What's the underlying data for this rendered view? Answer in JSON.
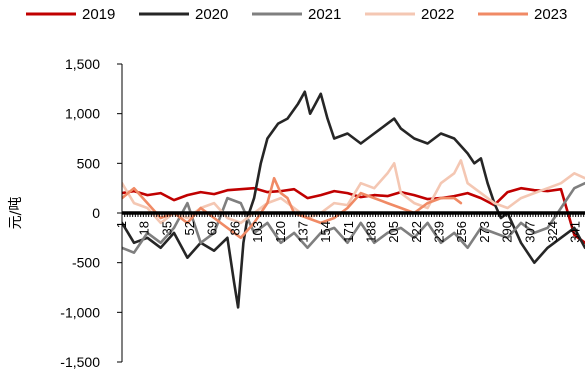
{
  "chart_data": {
    "type": "line",
    "ylabel": "元/吨",
    "xlabel": "",
    "ylim": [
      -1500,
      1500
    ],
    "yticks": [
      -1500,
      -1000,
      -500,
      0,
      500,
      1000,
      1500
    ],
    "ytick_labels": [
      "-1,500",
      "-1,000",
      "-500",
      "0",
      "500",
      "1,000",
      "1,500"
    ],
    "xticks": [
      1,
      18,
      35,
      52,
      69,
      86,
      103,
      120,
      137,
      154,
      171,
      188,
      205,
      222,
      239,
      256,
      273,
      290,
      307,
      324,
      341
    ],
    "xticks_visible": [
      "1",
      "18",
      "35",
      "52",
      "69",
      "86",
      "103",
      "120",
      "137",
      "154",
      "171",
      "188",
      "205",
      "222",
      "239",
      "256",
      "273",
      "290",
      "307",
      "324",
      "341"
    ],
    "xlim": [
      1,
      348
    ],
    "zero_line_color": "#000000",
    "grid": false,
    "legend_position": "top",
    "series": [
      {
        "name": "2019",
        "color": "#c00000",
        "x": [
          1,
          10,
          20,
          30,
          40,
          50,
          60,
          70,
          80,
          90,
          100,
          110,
          120,
          130,
          140,
          150,
          160,
          170,
          180,
          190,
          200,
          210,
          220,
          230,
          240,
          250,
          260,
          270,
          280,
          290,
          300,
          310,
          320,
          330,
          340,
          348
        ],
        "y": [
          200,
          220,
          180,
          200,
          130,
          180,
          210,
          190,
          230,
          240,
          250,
          210,
          220,
          240,
          150,
          180,
          220,
          200,
          160,
          180,
          170,
          210,
          180,
          140,
          150,
          170,
          200,
          150,
          80,
          210,
          250,
          230,
          220,
          240,
          -220,
          -300
        ]
      },
      {
        "name": "2020",
        "color": "#262626",
        "x": [
          1,
          10,
          20,
          30,
          40,
          50,
          60,
          70,
          80,
          85,
          88,
          92,
          95,
          100,
          105,
          110,
          118,
          125,
          133,
          138,
          142,
          146,
          150,
          155,
          160,
          170,
          180,
          190,
          200,
          205,
          210,
          220,
          230,
          240,
          250,
          260,
          265,
          270,
          275,
          280,
          285,
          290,
          300,
          310,
          320,
          330,
          340,
          348
        ],
        "y": [
          -100,
          -300,
          -250,
          -350,
          -200,
          -450,
          -300,
          -380,
          -250,
          -700,
          -950,
          -300,
          -50,
          150,
          500,
          750,
          900,
          950,
          1100,
          1220,
          1000,
          1100,
          1200,
          950,
          750,
          800,
          700,
          800,
          900,
          950,
          850,
          750,
          700,
          800,
          750,
          600,
          500,
          550,
          300,
          100,
          -50,
          0,
          -300,
          -500,
          -350,
          -250,
          -150,
          -350
        ]
      },
      {
        "name": "2021",
        "color": "#7f7f7f",
        "x": [
          1,
          10,
          20,
          30,
          40,
          50,
          60,
          70,
          80,
          90,
          100,
          110,
          120,
          130,
          140,
          150,
          160,
          170,
          180,
          190,
          200,
          210,
          220,
          230,
          240,
          250,
          260,
          270,
          280,
          290,
          300,
          310,
          320,
          330,
          340,
          348
        ],
        "y": [
          -350,
          -400,
          -200,
          -300,
          -150,
          100,
          -300,
          -200,
          150,
          100,
          -200,
          -100,
          -300,
          -200,
          -350,
          -200,
          -150,
          -300,
          -100,
          -300,
          -200,
          -150,
          -250,
          -100,
          -300,
          -200,
          -350,
          -150,
          -200,
          -250,
          -100,
          -200,
          -150,
          50,
          250,
          300
        ]
      },
      {
        "name": "2022",
        "color": "#f4c7b3",
        "x": [
          1,
          10,
          20,
          30,
          40,
          50,
          60,
          70,
          80,
          90,
          100,
          110,
          120,
          130,
          140,
          150,
          160,
          170,
          180,
          190,
          200,
          205,
          210,
          220,
          230,
          240,
          250,
          255,
          260,
          270,
          280,
          290,
          300,
          310,
          320,
          330,
          340,
          348
        ],
        "y": [
          300,
          100,
          50,
          -100,
          0,
          -50,
          50,
          100,
          -50,
          -100,
          0,
          100,
          150,
          50,
          -50,
          0,
          100,
          80,
          300,
          250,
          400,
          500,
          200,
          100,
          50,
          300,
          400,
          530,
          300,
          200,
          100,
          50,
          150,
          200,
          250,
          300,
          400,
          350
        ]
      },
      {
        "name": "2023",
        "color": "#f08a65",
        "x": [
          1,
          10,
          20,
          30,
          40,
          50,
          60,
          70,
          80,
          90,
          100,
          110,
          115,
          120,
          125,
          130,
          140,
          150,
          160,
          170,
          180,
          190,
          200,
          210,
          220,
          230,
          240,
          250,
          255
        ],
        "y": [
          150,
          250,
          100,
          -50,
          0,
          -100,
          50,
          -50,
          -150,
          -250,
          -100,
          100,
          350,
          200,
          150,
          0,
          -50,
          -100,
          -50,
          50,
          200,
          150,
          100,
          50,
          0,
          100,
          150,
          150,
          100
        ]
      }
    ]
  }
}
